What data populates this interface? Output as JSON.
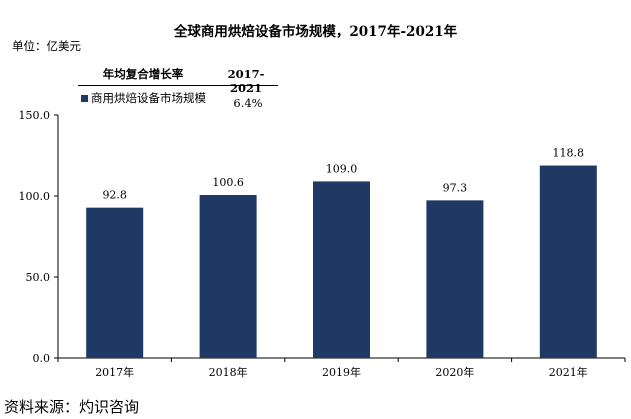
{
  "chart_data": {
    "type": "bar",
    "title": "全球商用烘焙设备市场规模，2017年-2021年",
    "unit_label": "单位：亿美元",
    "categories": [
      "2017年",
      "2018年",
      "2019年",
      "2020年",
      "2021年"
    ],
    "series": [
      {
        "name": "商用烘焙设备市场规模",
        "values": [
          92.8,
          100.6,
          109.0,
          97.3,
          118.8
        ],
        "color": "#1f3864"
      }
    ],
    "data_labels": [
      "92.8",
      "100.6",
      "109.0",
      "97.3",
      "118.8"
    ],
    "ylim": [
      0,
      150
    ],
    "yticks": [
      "0.0",
      "50.0",
      "100.0",
      "150.0"
    ],
    "grid": false,
    "cagr_table": {
      "header_label": "年均复合增长率",
      "header_period": "2017-2021",
      "row_name": "商用烘焙设备市场规模",
      "row_value": "6.4%"
    },
    "source": "资料来源：灼识咨询"
  }
}
